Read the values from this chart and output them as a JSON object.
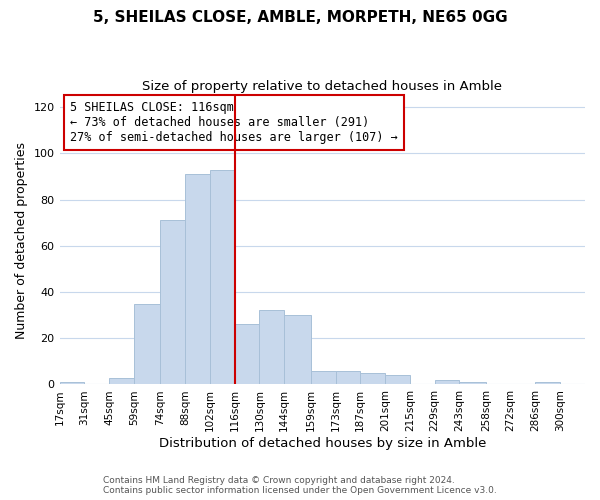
{
  "title": "5, SHEILAS CLOSE, AMBLE, MORPETH, NE65 0GG",
  "subtitle": "Size of property relative to detached houses in Amble",
  "xlabel": "Distribution of detached houses by size in Amble",
  "ylabel": "Number of detached properties",
  "bar_left_edges": [
    17,
    31,
    45,
    59,
    74,
    88,
    102,
    116,
    130,
    144,
    159,
    173,
    187,
    201,
    215,
    229,
    243,
    258,
    272,
    286
  ],
  "bar_heights": [
    1,
    0,
    3,
    35,
    71,
    91,
    93,
    26,
    32,
    30,
    6,
    6,
    5,
    4,
    0,
    2,
    1,
    0,
    0,
    1
  ],
  "bar_widths": [
    14,
    14,
    14,
    15,
    14,
    14,
    14,
    14,
    14,
    15,
    14,
    14,
    14,
    14,
    14,
    14,
    15,
    14,
    14,
    14
  ],
  "bar_color": "#c8d8ec",
  "bar_edgecolor": "#a8c0d8",
  "vline_x": 116,
  "vline_color": "#cc0000",
  "ylim": [
    0,
    125
  ],
  "yticks": [
    0,
    20,
    40,
    60,
    80,
    100,
    120
  ],
  "xtick_labels": [
    "17sqm",
    "31sqm",
    "45sqm",
    "59sqm",
    "74sqm",
    "88sqm",
    "102sqm",
    "116sqm",
    "130sqm",
    "144sqm",
    "159sqm",
    "173sqm",
    "187sqm",
    "201sqm",
    "215sqm",
    "229sqm",
    "243sqm",
    "258sqm",
    "272sqm",
    "286sqm",
    "300sqm"
  ],
  "xtick_positions": [
    17,
    31,
    45,
    59,
    74,
    88,
    102,
    116,
    130,
    144,
    159,
    173,
    187,
    201,
    215,
    229,
    243,
    258,
    272,
    286,
    300
  ],
  "annotation_title": "5 SHEILAS CLOSE: 116sqm",
  "annotation_line1": "← 73% of detached houses are smaller (291)",
  "annotation_line2": "27% of semi-detached houses are larger (107) →",
  "footer_line1": "Contains HM Land Registry data © Crown copyright and database right 2024.",
  "footer_line2": "Contains public sector information licensed under the Open Government Licence v3.0.",
  "bg_color": "#ffffff",
  "plot_bg_color": "#ffffff",
  "grid_color": "#c8d8ec"
}
